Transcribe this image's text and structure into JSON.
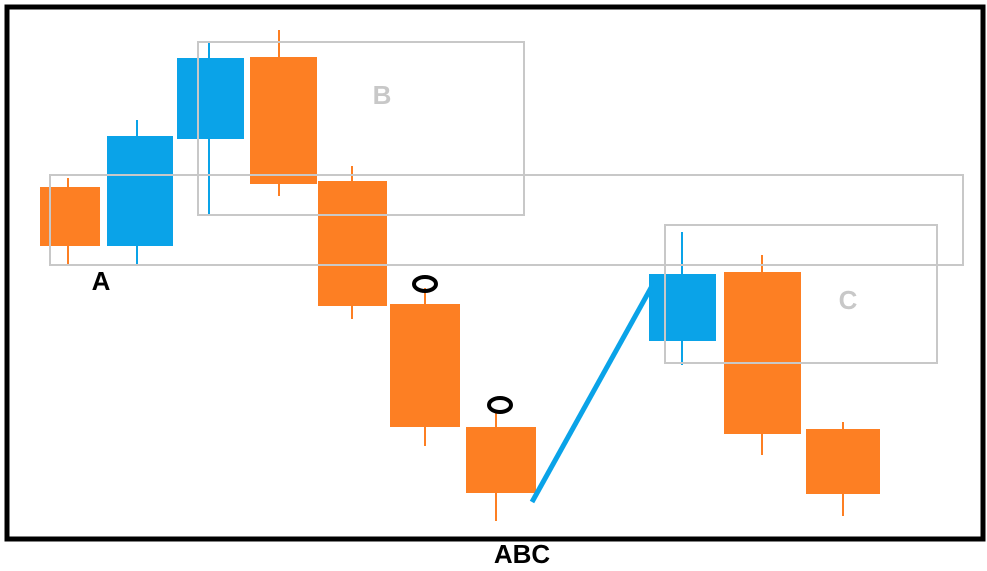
{
  "labels": {
    "start": "A",
    "box_b": "B",
    "box_c": "C",
    "pattern": "ABC"
  }
}
